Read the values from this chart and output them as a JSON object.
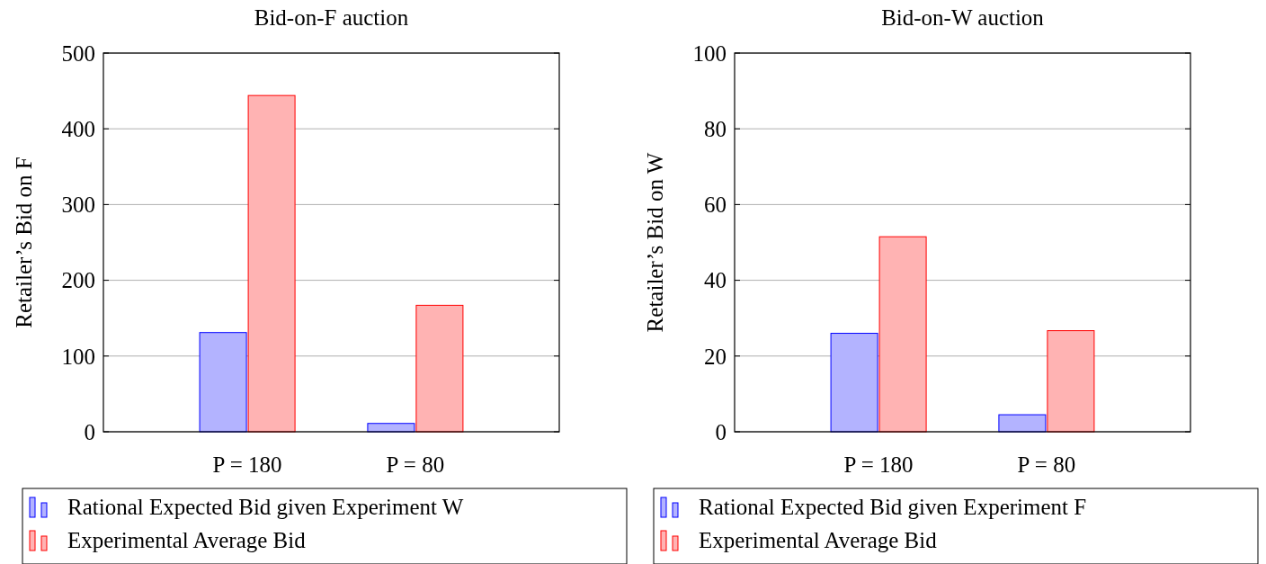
{
  "chart_data": [
    {
      "type": "bar",
      "title": "Bid-on-F auction",
      "ylabel": "Retailer’s Bid on F",
      "categories": [
        "P = 180",
        "P = 80"
      ],
      "series": [
        {
          "name": "Rational Expected Bid given Experiment W",
          "color": "#b3b3ff",
          "values": [
            131,
            11
          ]
        },
        {
          "name": "Experimental Average Bid",
          "color": "#ffb3b3",
          "values": [
            444,
            167
          ]
        }
      ],
      "ylim": [
        0,
        500
      ],
      "yticks": [
        0,
        100,
        200,
        300,
        400,
        500
      ],
      "grid": "y",
      "legend": "bottom"
    },
    {
      "type": "bar",
      "title": "Bid-on-W auction",
      "ylabel": "Retailer’s Bid on W",
      "categories": [
        "P = 180",
        "P = 80"
      ],
      "series": [
        {
          "name": "Rational Expected Bid given Experiment F",
          "color": "#b3b3ff",
          "values": [
            26,
            4.5
          ]
        },
        {
          "name": "Experimental Average Bid",
          "color": "#ffb3b3",
          "values": [
            51.5,
            26.7
          ]
        }
      ],
      "ylim": [
        0,
        100
      ],
      "yticks": [
        0,
        20,
        40,
        60,
        80,
        100
      ],
      "grid": "y",
      "legend": "bottom"
    }
  ]
}
